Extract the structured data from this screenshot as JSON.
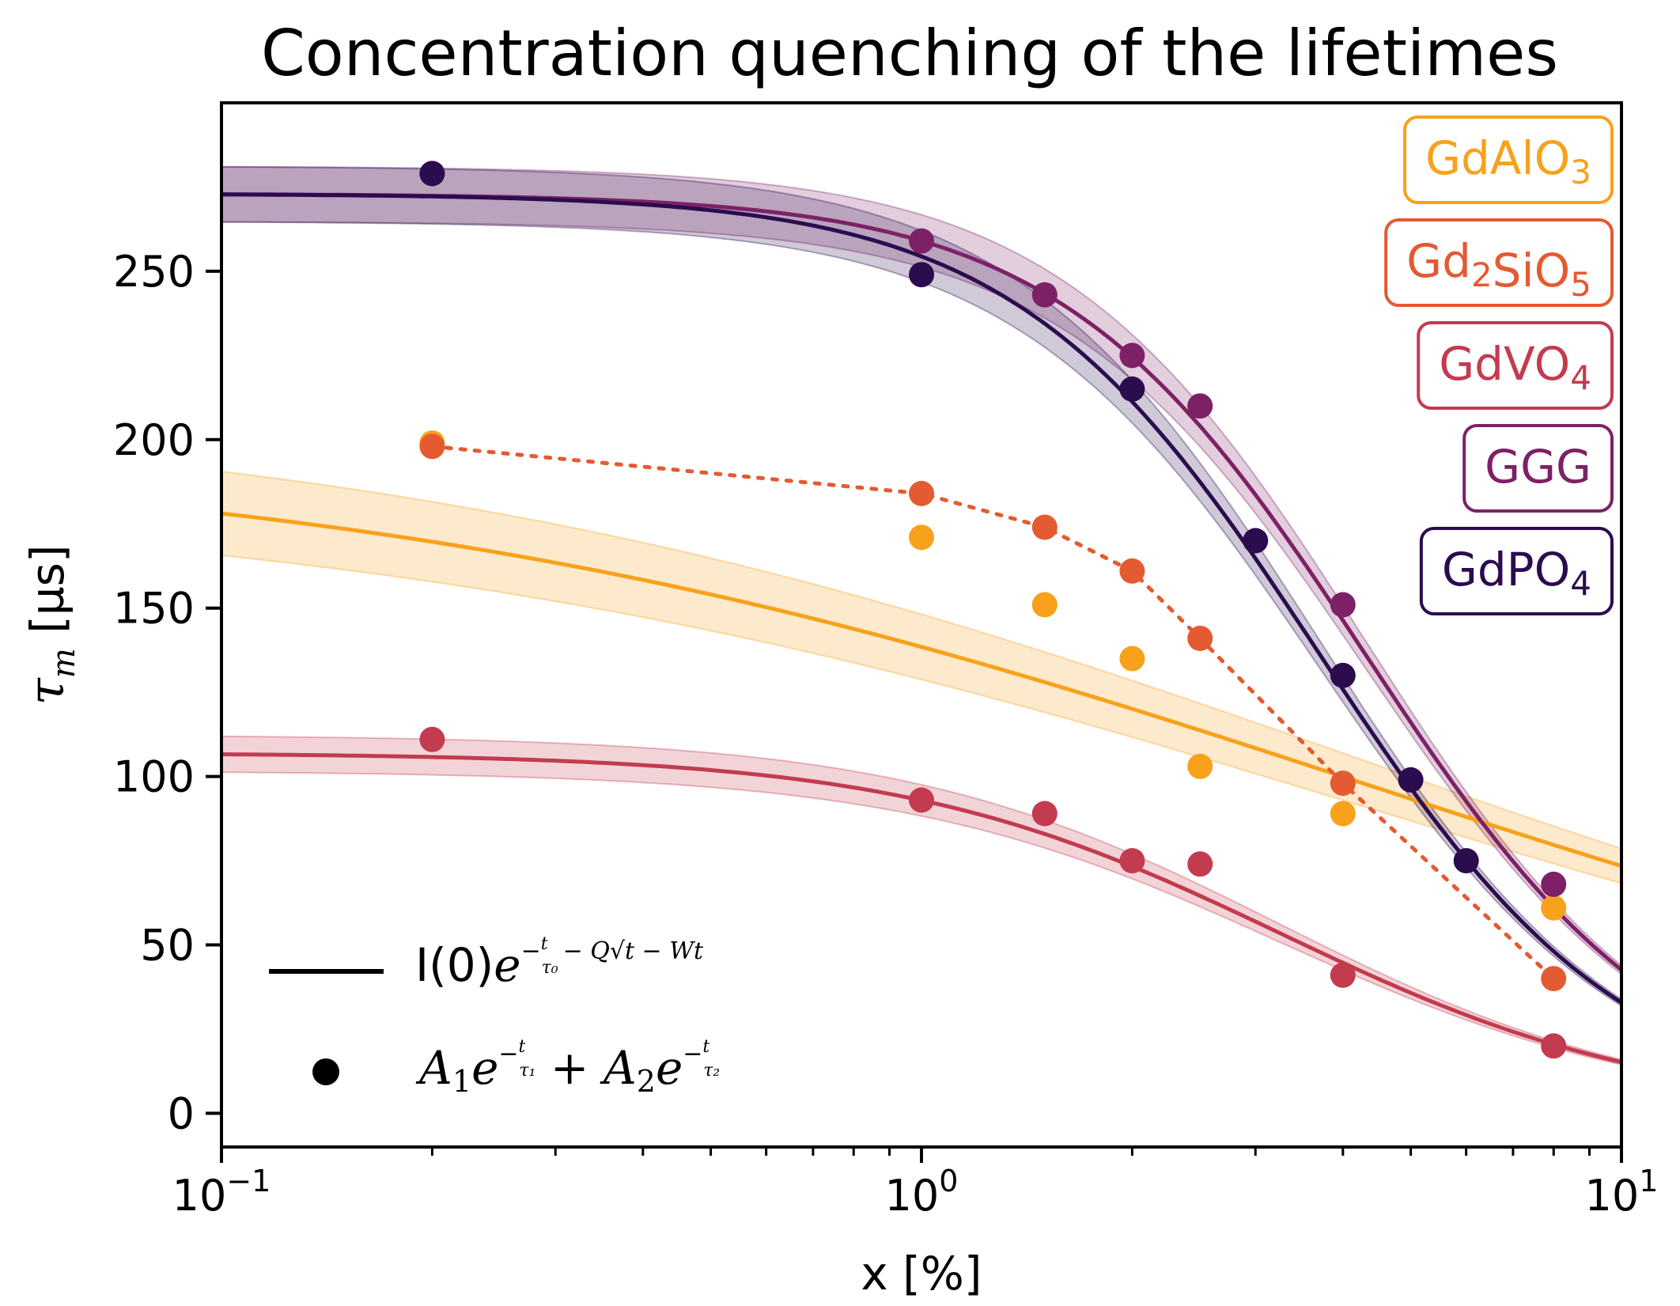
{
  "chart_data": {
    "type": "scatter",
    "title": "Concentration quenching of the lifetimes",
    "xlabel": "x [%]",
    "ylabel": "τm [µs]",
    "xscale": "log",
    "xlim": [
      0.1,
      10
    ],
    "ylim": [
      -10,
      300
    ],
    "x_ticks": [
      {
        "value": 0.1,
        "base": "10",
        "exp": "−1"
      },
      {
        "value": 1,
        "base": "10",
        "exp": "0"
      },
      {
        "value": 10,
        "base": "10",
        "exp": "1"
      }
    ],
    "y_ticks": [
      0,
      50,
      100,
      150,
      200,
      250
    ],
    "legend_placement": "top-right",
    "series": [
      {
        "name": "GdAlO3",
        "label_base": "GdAlO",
        "label_sub": "3",
        "color": "#f8a11b",
        "x": [
          0.2,
          1,
          1.5,
          2,
          2.5,
          4,
          8
        ],
        "values": [
          199,
          171,
          151,
          135,
          103,
          89,
          61
        ],
        "fit": {
          "tau0": 197,
          "c": 4.2,
          "n": 0.6,
          "band": 0.07
        }
      },
      {
        "name": "Gd2SiO5",
        "label_base": "Gd",
        "label_sub": "2",
        "label_mid": "SiO",
        "label_sub2": "5",
        "color": "#e45a31",
        "x": [
          0.2,
          1,
          1.5,
          2,
          2.5,
          4,
          8
        ],
        "values": [
          198,
          184,
          174,
          161,
          141,
          98,
          40
        ],
        "fit": null
      },
      {
        "name": "GdVO4",
        "label_base": "GdVO",
        "label_sub": "4",
        "color": "#c33b4f",
        "x": [
          0.2,
          1,
          1.5,
          2,
          2.5,
          4,
          8
        ],
        "values": [
          111,
          93,
          89,
          75,
          74,
          41,
          20
        ],
        "fit": {
          "tau0": 107,
          "c": 3.25,
          "n": 1.6,
          "band": 0.05
        }
      },
      {
        "name": "GGG",
        "label_base": "GGG",
        "label_sub": "",
        "color": "#7d2166",
        "x": [
          0.2,
          1,
          1.5,
          2,
          2.5,
          4,
          8
        ],
        "values": [
          279,
          259,
          243,
          225,
          210,
          151,
          68
        ],
        "fit": {
          "tau0": 273,
          "c": 4.3,
          "n": 2.0,
          "band": 0.03
        }
      },
      {
        "name": "GdPO4",
        "label_base": "GdPO",
        "label_sub": "4",
        "color": "#2a0c4f",
        "x": [
          0.2,
          1,
          2,
          3,
          4,
          5,
          6
        ],
        "values": [
          279,
          249,
          215,
          170,
          130,
          99,
          75
        ],
        "fit": {
          "tau0": 273,
          "c": 3.7,
          "n": 2.0,
          "band": 0.03
        }
      }
    ],
    "style_legend": {
      "line_formula": "I(0)e^(−t/τ0 − Q√t − Wt)",
      "dot_formula": "A1e^(−t/τ1) + A2e^(−t/τ2)"
    }
  }
}
